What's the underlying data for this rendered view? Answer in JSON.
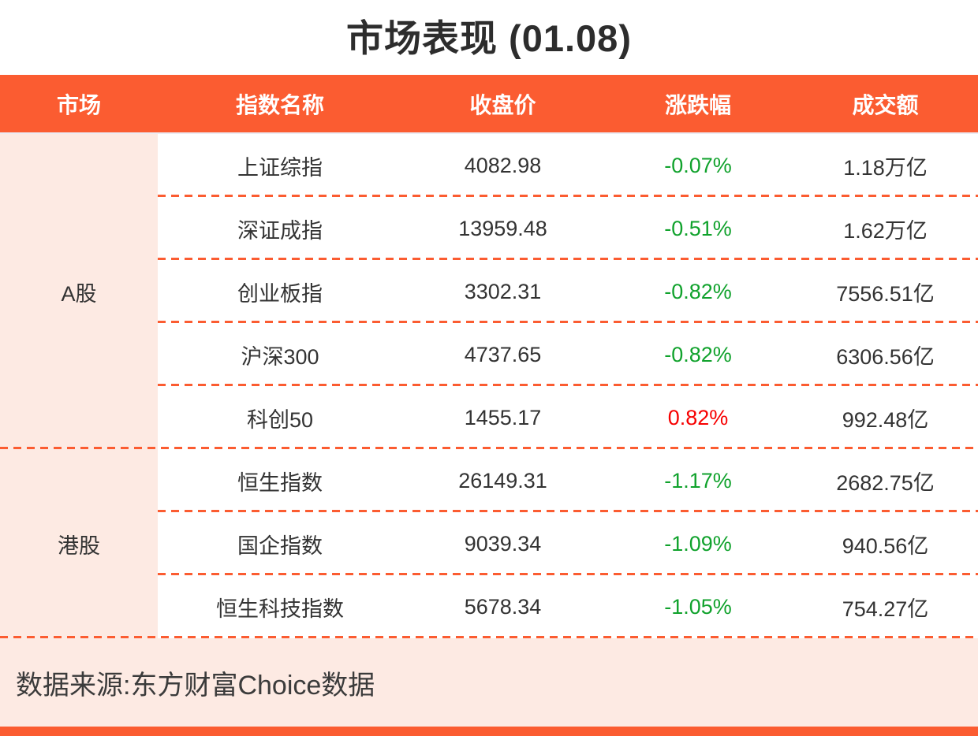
{
  "chart_data": {
    "type": "table",
    "title": "市场表现 (01.08)",
    "columns": [
      "市场",
      "指数名称",
      "收盘价",
      "涨跌幅",
      "成交额"
    ],
    "groups": [
      {
        "market": "A股",
        "rows": [
          {
            "name": "上证综指",
            "close": "4082.98",
            "change": "-0.07%",
            "trend": "down",
            "turnover": "1.18万亿"
          },
          {
            "name": "深证成指",
            "close": "13959.48",
            "change": "-0.51%",
            "trend": "down",
            "turnover": "1.62万亿"
          },
          {
            "name": "创业板指",
            "close": "3302.31",
            "change": "-0.82%",
            "trend": "down",
            "turnover": "7556.51亿"
          },
          {
            "name": "沪深300",
            "close": "4737.65",
            "change": "-0.82%",
            "trend": "down",
            "turnover": "6306.56亿"
          },
          {
            "name": "科创50",
            "close": "1455.17",
            "change": "0.82%",
            "trend": "up",
            "turnover": "992.48亿"
          }
        ]
      },
      {
        "market": "港股",
        "rows": [
          {
            "name": "恒生指数",
            "close": "26149.31",
            "change": "-1.17%",
            "trend": "down",
            "turnover": "2682.75亿"
          },
          {
            "name": "国企指数",
            "close": "9039.34",
            "change": "-1.09%",
            "trend": "down",
            "turnover": "940.56亿"
          },
          {
            "name": "恒生科技指数",
            "close": "5678.34",
            "change": "-1.05%",
            "trend": "down",
            "turnover": "754.27亿"
          }
        ]
      }
    ]
  },
  "footer": {
    "source": "数据来源:东方财富Choice数据"
  },
  "colors": {
    "accent_orange": "#fb5c31",
    "panel_pink": "#fdeae3",
    "gain_red": "#f70000",
    "loss_green": "#10a22c"
  }
}
